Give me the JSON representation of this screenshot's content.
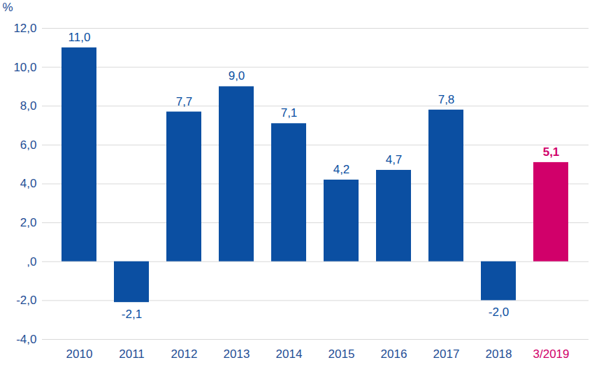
{
  "chart_data": {
    "type": "bar",
    "y_label": "%",
    "categories": [
      "2010",
      "2011",
      "2012",
      "2013",
      "2014",
      "2015",
      "2016",
      "2017",
      "2018",
      "3/2019"
    ],
    "values": [
      11.0,
      -2.1,
      7.7,
      9.0,
      7.1,
      4.2,
      4.7,
      7.8,
      -2.0,
      5.1
    ],
    "value_labels": [
      "11,0",
      "-2,1",
      "7,7",
      "9,0",
      "7,1",
      "4,2",
      "4,7",
      "7,8",
      "-2,0",
      "5,1"
    ],
    "colors": [
      "#0b4fa2",
      "#0b4fa2",
      "#0b4fa2",
      "#0b4fa2",
      "#0b4fa2",
      "#0b4fa2",
      "#0b4fa2",
      "#0b4fa2",
      "#0b4fa2",
      "#d1006a"
    ],
    "ylim": [
      -4,
      12
    ],
    "yticks": [
      {
        "value": -4,
        "label": "-4,0"
      },
      {
        "value": -2,
        "label": "-2,0"
      },
      {
        "value": 0,
        "label": ",0"
      },
      {
        "value": 2,
        "label": "2,0"
      },
      {
        "value": 4,
        "label": "4,0"
      },
      {
        "value": 6,
        "label": "6,0"
      },
      {
        "value": 8,
        "label": "8,0"
      },
      {
        "value": 10,
        "label": "10,0"
      },
      {
        "value": 12,
        "label": "12,0"
      }
    ],
    "grid": true,
    "data_labels": true
  }
}
